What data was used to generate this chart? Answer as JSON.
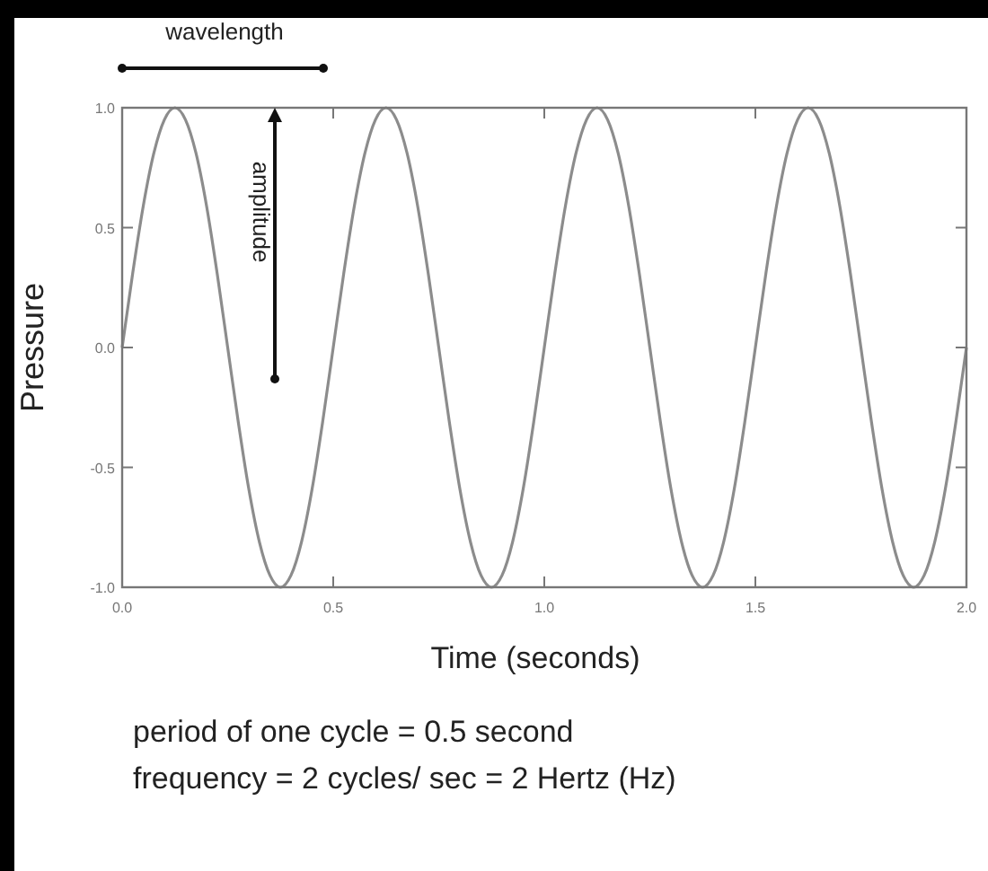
{
  "chart_data": {
    "type": "line",
    "xlabel": "Time (seconds)",
    "ylabel": "Pressure",
    "annotations": [
      "wavelength",
      "amplitude",
      "period of one cycle = 0.5 second",
      "frequency = 2 cycles/ sec = 2 Hertz (Hz)"
    ],
    "x": [
      0,
      0.025,
      0.05,
      0.075,
      0.1,
      0.125,
      0.15,
      0.175,
      0.2,
      0.225,
      0.25,
      0.275,
      0.3,
      0.325,
      0.35,
      0.375,
      0.4,
      0.425,
      0.45,
      0.475,
      0.5,
      0.525,
      0.55,
      0.575,
      0.6,
      0.625,
      0.65,
      0.675,
      0.7,
      0.725,
      0.75,
      0.775,
      0.8,
      0.825,
      0.85,
      0.875,
      0.9,
      0.925,
      0.95,
      0.975,
      1,
      1.025,
      1.05,
      1.075,
      1.1,
      1.125,
      1.15,
      1.175,
      1.2,
      1.225,
      1.25,
      1.275,
      1.3,
      1.325,
      1.35,
      1.375,
      1.4,
      1.425,
      1.45,
      1.475,
      1.5,
      1.525,
      1.55,
      1.575,
      1.6,
      1.625,
      1.65,
      1.675,
      1.7,
      1.725,
      1.75,
      1.775,
      1.8,
      1.825,
      1.85,
      1.875,
      1.9,
      1.925,
      1.95,
      1.975,
      2
    ],
    "series": [
      {
        "color": "#8c8c8c",
        "values": [
          0,
          0.31,
          0.59,
          0.81,
          0.95,
          1,
          0.95,
          0.81,
          0.59,
          0.31,
          0,
          -0.31,
          -0.59,
          -0.81,
          -0.95,
          -1,
          -0.95,
          -0.81,
          -0.59,
          -0.31,
          0,
          0.31,
          0.59,
          0.81,
          0.95,
          1,
          0.95,
          0.81,
          0.59,
          0.31,
          0,
          -0.31,
          -0.59,
          -0.81,
          -0.95,
          -1,
          -0.95,
          -0.81,
          -0.59,
          -0.31,
          0,
          0.31,
          0.59,
          0.81,
          0.95,
          1,
          0.95,
          0.81,
          0.59,
          0.31,
          0,
          -0.31,
          -0.59,
          -0.81,
          -0.95,
          -1,
          -0.95,
          -0.81,
          -0.59,
          -0.31,
          0,
          0.31,
          0.59,
          0.81,
          0.95,
          1,
          0.95,
          0.81,
          0.59,
          0.31,
          0,
          -0.31,
          -0.59,
          -0.81,
          -0.95,
          -1,
          -0.95,
          -0.81,
          -0.59,
          -0.31,
          0
        ]
      }
    ],
    "xlim": [
      0,
      2
    ],
    "xticks": [
      {
        "value": 0,
        "label": "0.0"
      },
      0.5,
      {
        "value": 1,
        "label": "1.0"
      },
      1.5,
      {
        "value": 2,
        "label": "2.0"
      }
    ],
    "ylim": [
      -1,
      1
    ],
    "yticks": [
      {
        "value": -1,
        "label": "-1.0"
      },
      -0.5,
      {
        "value": 0,
        "label": "0.0"
      },
      0.5,
      {
        "value": 1,
        "label": "1.0"
      }
    ],
    "grid": false
  }
}
